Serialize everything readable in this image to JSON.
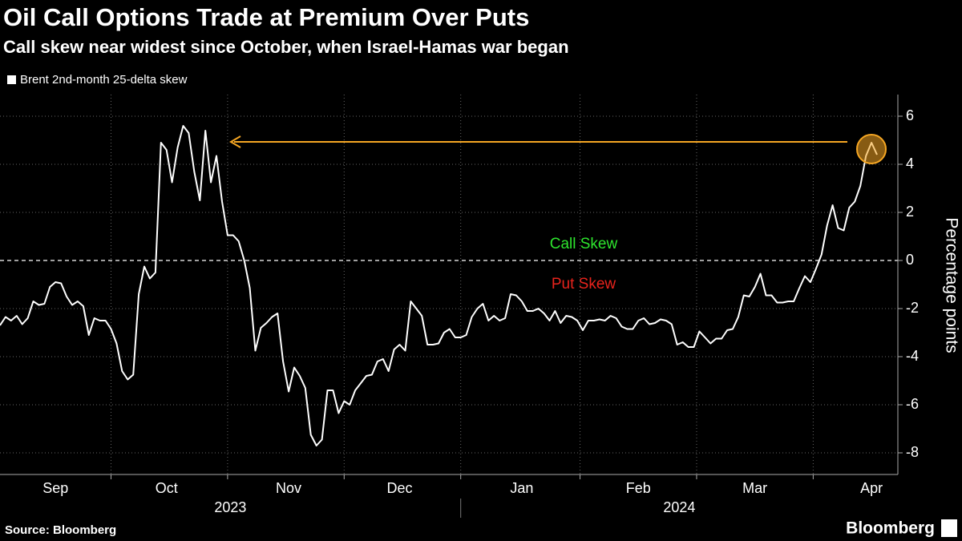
{
  "chart_data": {
    "type": "line",
    "title": "Oil Call Options Trade at Premium Over Puts",
    "subtitle": "Call skew near widest since October, when Israel-Hamas war began",
    "y_label": "Percentage points",
    "source": "Source: Bloomberg",
    "brand": "Bloomberg",
    "annotations": [
      "Call Skew",
      "Put Skew"
    ],
    "year_labels": [
      "2023",
      "2024"
    ],
    "categories": [
      null,
      null,
      null,
      null,
      null,
      null,
      null,
      null,
      null,
      null,
      "Sep",
      null,
      null,
      null,
      null,
      null,
      null,
      null,
      null,
      null,
      null,
      null,
      null,
      null,
      null,
      null,
      null,
      null,
      null,
      null,
      "Oct",
      null,
      null,
      null,
      null,
      null,
      null,
      null,
      null,
      null,
      null,
      null,
      null,
      null,
      null,
      null,
      null,
      null,
      null,
      null,
      null,
      null,
      "Nov",
      null,
      null,
      null,
      null,
      null,
      null,
      null,
      null,
      null,
      null,
      null,
      null,
      null,
      null,
      null,
      null,
      null,
      null,
      null,
      "Dec",
      null,
      null,
      null,
      null,
      null,
      null,
      null,
      null,
      null,
      null,
      null,
      null,
      null,
      null,
      null,
      null,
      null,
      null,
      null,
      null,
      null,
      "Jan",
      null,
      null,
      null,
      null,
      null,
      null,
      null,
      null,
      null,
      null,
      null,
      null,
      null,
      null,
      null,
      null,
      null,
      null,
      null,
      null,
      "Feb",
      null,
      null,
      null,
      null,
      null,
      null,
      null,
      null,
      null,
      null,
      null,
      null,
      null,
      null,
      null,
      null,
      null,
      null,
      null,
      null,
      "Mar",
      null,
      null,
      null,
      null,
      null,
      null,
      null,
      null,
      null,
      null,
      null,
      null,
      null,
      null,
      null,
      null,
      null,
      null,
      null,
      null,
      "Apr",
      null
    ],
    "series": [
      {
        "name": "Brent 2nd-month 25-delta skew",
        "color": "#ffffff",
        "values": [
          -2.7,
          -2.35,
          -2.5,
          -2.3,
          -2.65,
          -2.4,
          -1.7,
          -1.85,
          -1.8,
          -1.1,
          -0.9,
          -0.95,
          -1.5,
          -1.85,
          -1.7,
          -1.9,
          -3.1,
          -2.4,
          -2.5,
          -2.5,
          -2.85,
          -3.45,
          -4.6,
          -4.95,
          -4.75,
          -1.4,
          -0.25,
          -0.75,
          -0.5,
          4.9,
          4.6,
          3.25,
          4.7,
          5.6,
          5.3,
          3.7,
          2.5,
          5.4,
          3.25,
          4.35,
          2.45,
          1.05,
          1.05,
          0.8,
          0.0,
          -1.15,
          -3.75,
          -2.8,
          -2.6,
          -2.35,
          -2.2,
          -4.2,
          -5.45,
          -4.45,
          -4.8,
          -5.3,
          -7.25,
          -7.7,
          -7.45,
          -5.4,
          -5.4,
          -6.35,
          -5.85,
          -6.0,
          -5.4,
          -5.1,
          -4.8,
          -4.75,
          -4.2,
          -4.1,
          -4.6,
          -3.7,
          -3.5,
          -3.75,
          -1.7,
          -2.0,
          -2.3,
          -3.5,
          -3.5,
          -3.45,
          -3.0,
          -2.85,
          -3.2,
          -3.2,
          -3.1,
          -2.35,
          -2.0,
          -1.8,
          -2.5,
          -2.3,
          -2.5,
          -2.4,
          -1.4,
          -1.45,
          -1.7,
          -2.1,
          -2.1,
          -2.0,
          -2.2,
          -2.5,
          -2.1,
          -2.6,
          -2.3,
          -2.35,
          -2.5,
          -2.9,
          -2.5,
          -2.5,
          -2.45,
          -2.5,
          -2.3,
          -2.4,
          -2.75,
          -2.85,
          -2.85,
          -2.5,
          -2.4,
          -2.65,
          -2.6,
          -2.45,
          -2.5,
          -2.65,
          -3.5,
          -3.4,
          -3.6,
          -3.6,
          -2.95,
          -3.2,
          -3.45,
          -3.25,
          -3.25,
          -2.9,
          -2.85,
          -2.35,
          -1.45,
          -1.5,
          -1.1,
          -0.55,
          -1.45,
          -1.45,
          -1.75,
          -1.75,
          -1.7,
          -1.7,
          -1.15,
          -0.65,
          -0.9,
          -0.35,
          0.25,
          1.45,
          2.3,
          1.35,
          1.25,
          2.2,
          2.45,
          3.1,
          4.35,
          4.9,
          4.4
        ]
      }
    ],
    "ylim": [
      -8.9,
      6.9
    ],
    "yticks": [
      -8,
      -6,
      -4,
      -2,
      0,
      2,
      4,
      6
    ],
    "grid": true
  }
}
